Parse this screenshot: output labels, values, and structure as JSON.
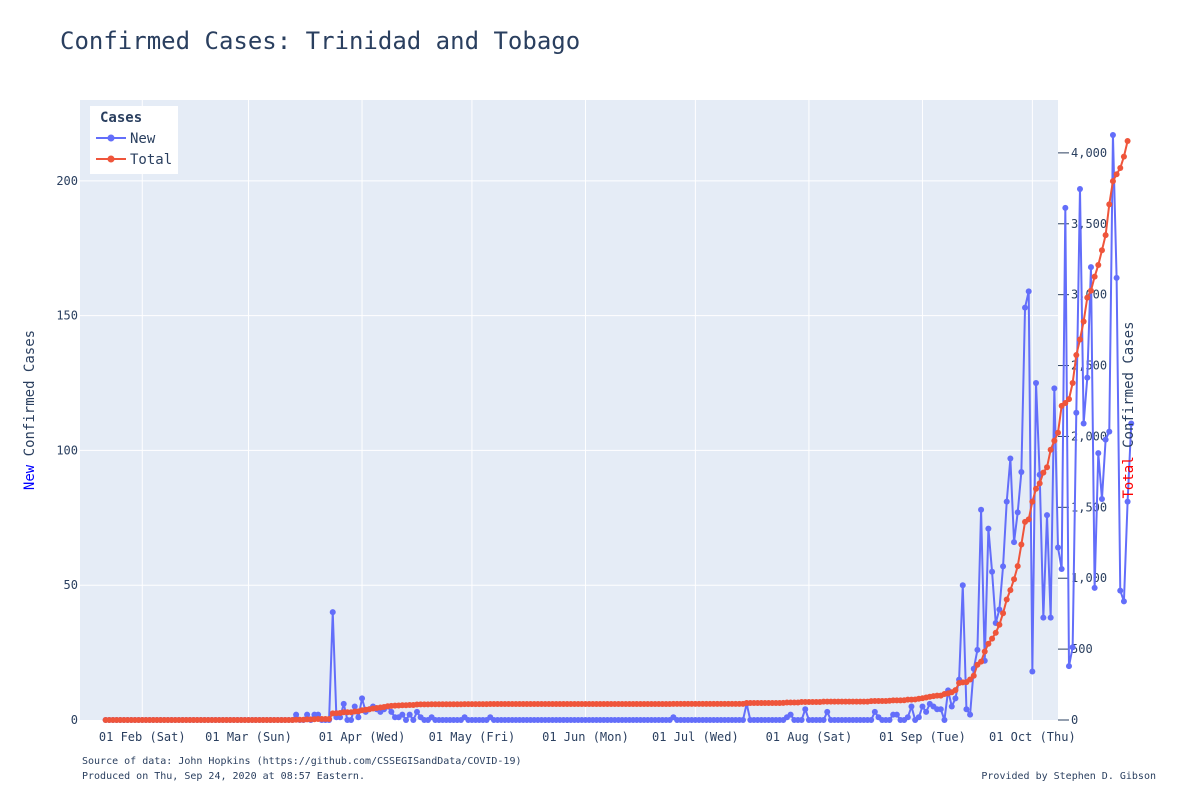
{
  "title": "Confirmed Cases: Trinidad and Tobago",
  "footer": {
    "source": "Source of data: John Hopkins (https://github.com/CSSEGISandData/COVID-19)",
    "produced": "Produced on Thu, Sep 24, 2020 at 08:57 Eastern.",
    "credit": "Provided by Stephen D. Gibson"
  },
  "colors": {
    "new": "#636efa",
    "total": "#ef553b",
    "plot_bg": "#e5ecf6",
    "grid": "#ffffff",
    "text": "#2a3f5f"
  },
  "chart_data": {
    "type": "line",
    "x_start_date": "2020-01-22",
    "x_end_date": "2020-09-23",
    "x_range": [
      "2020-01-15",
      "2020-10-08"
    ],
    "x_ticks": [
      {
        "date": "2020-02-01",
        "label": "01 Feb (Sat)"
      },
      {
        "date": "2020-03-01",
        "label": "01 Mar (Sun)"
      },
      {
        "date": "2020-04-01",
        "label": "01 Apr (Wed)"
      },
      {
        "date": "2020-05-01",
        "label": "01 May (Fri)"
      },
      {
        "date": "2020-06-01",
        "label": "01 Jun (Mon)"
      },
      {
        "date": "2020-07-01",
        "label": "01 Jul (Wed)"
      },
      {
        "date": "2020-08-01",
        "label": "01 Aug (Sat)"
      },
      {
        "date": "2020-09-01",
        "label": "01 Sep (Tue)"
      },
      {
        "date": "2020-10-01",
        "label": "01 Oct (Thu)"
      }
    ],
    "y_left": {
      "label_highlight": "New",
      "label_rest": " Confirmed Cases",
      "range": [
        0,
        230
      ],
      "ticks": [
        0,
        50,
        100,
        150,
        200
      ],
      "tick_labels": [
        "0",
        "50",
        "100",
        "150",
        "200"
      ]
    },
    "y_right": {
      "label_highlight": "Total",
      "label_rest": " Confirmed Cases",
      "range": [
        0,
        4373
      ],
      "ticks": [
        0,
        500,
        1000,
        1500,
        2000,
        2500,
        3000,
        3500,
        4000
      ],
      "tick_labels": [
        "0",
        "500",
        "1,000",
        "1,500",
        "2,000",
        "2,500",
        "3,000",
        "3,500",
        "4,000"
      ]
    },
    "legend": {
      "title": "Cases",
      "position": "top-left"
    },
    "series": [
      {
        "name": "New",
        "axis": "left",
        "values": [
          0,
          0,
          0,
          0,
          0,
          0,
          0,
          0,
          0,
          0,
          0,
          0,
          0,
          0,
          0,
          0,
          0,
          0,
          0,
          0,
          0,
          0,
          0,
          0,
          0,
          0,
          0,
          0,
          0,
          0,
          0,
          0,
          0,
          0,
          0,
          0,
          0,
          0,
          0,
          0,
          0,
          0,
          0,
          0,
          0,
          0,
          0,
          0,
          0,
          0,
          0,
          0,
          2,
          0,
          0,
          2,
          0,
          2,
          2,
          0,
          0,
          0,
          40,
          1,
          1,
          6,
          0,
          0,
          5,
          1,
          8,
          3,
          4,
          5,
          4,
          3,
          4,
          5,
          3,
          1,
          1,
          2,
          0,
          2,
          0,
          3,
          1,
          0,
          0,
          1,
          0,
          0,
          0,
          0,
          0,
          0,
          0,
          0,
          1,
          0,
          0,
          0,
          0,
          0,
          0,
          1,
          0,
          0,
          0,
          0,
          0,
          0,
          0,
          0,
          0,
          0,
          0,
          0,
          0,
          0,
          0,
          0,
          0,
          0,
          0,
          0,
          0,
          0,
          0,
          0,
          0,
          0,
          0,
          0,
          0,
          0,
          0,
          0,
          0,
          0,
          0,
          0,
          0,
          0,
          0,
          0,
          0,
          0,
          0,
          0,
          0,
          0,
          0,
          0,
          0,
          1,
          0,
          0,
          0,
          0,
          0,
          0,
          0,
          0,
          0,
          0,
          0,
          0,
          0,
          0,
          0,
          0,
          0,
          0,
          0,
          6,
          0,
          0,
          0,
          0,
          0,
          0,
          0,
          0,
          0,
          0,
          1,
          2,
          0,
          0,
          0,
          4,
          0,
          0,
          0,
          0,
          0,
          3,
          0,
          0,
          0,
          0,
          0,
          0,
          0,
          0,
          0,
          0,
          0,
          0,
          3,
          1,
          0,
          0,
          0,
          2,
          2,
          0,
          0,
          1,
          5,
          0,
          1,
          5,
          3,
          6,
          5,
          4,
          4,
          0,
          11,
          5,
          8,
          15,
          50,
          4,
          2,
          19,
          26,
          78,
          22,
          71,
          55,
          36,
          41,
          57,
          81,
          97,
          66,
          77,
          92,
          153,
          159,
          18,
          125,
          91,
          38,
          76,
          38,
          123,
          64,
          56,
          190,
          20,
          27,
          114,
          197,
          110,
          127,
          168,
          49,
          99,
          82,
          104,
          107,
          217,
          164,
          48,
          44,
          81,
          110
        ]
      },
      {
        "name": "Total",
        "axis": "right",
        "values": [
          0,
          0,
          0,
          0,
          0,
          0,
          0,
          0,
          0,
          0,
          0,
          0,
          0,
          0,
          0,
          0,
          0,
          0,
          0,
          0,
          0,
          0,
          0,
          0,
          0,
          0,
          0,
          0,
          0,
          0,
          0,
          0,
          0,
          0,
          0,
          0,
          0,
          0,
          0,
          0,
          0,
          0,
          0,
          0,
          0,
          0,
          0,
          0,
          0,
          0,
          0,
          0,
          2,
          2,
          2,
          4,
          4,
          5,
          7,
          7,
          7,
          7,
          47,
          48,
          49,
          55,
          55,
          55,
          60,
          61,
          69,
          72,
          76,
          81,
          85,
          88,
          92,
          97,
          100,
          101,
          102,
          104,
          104,
          106,
          106,
          109,
          110,
          110,
          110,
          111,
          111,
          111,
          111,
          111,
          111,
          111,
          111,
          111,
          112,
          112,
          112,
          112,
          112,
          112,
          112,
          113,
          113,
          113,
          113,
          113,
          113,
          113,
          113,
          113,
          113,
          113,
          113,
          113,
          113,
          113,
          113,
          113,
          113,
          113,
          113,
          113,
          113,
          113,
          113,
          113,
          113,
          113,
          113,
          113,
          113,
          113,
          113,
          113,
          113,
          113,
          113,
          113,
          113,
          113,
          113,
          113,
          113,
          113,
          113,
          113,
          113,
          113,
          113,
          113,
          113,
          114,
          114,
          114,
          114,
          114,
          114,
          114,
          114,
          114,
          114,
          114,
          114,
          114,
          114,
          114,
          114,
          114,
          114,
          114,
          114,
          120,
          120,
          120,
          120,
          120,
          120,
          120,
          120,
          120,
          120,
          121,
          123,
          123,
          123,
          123,
          127,
          127,
          127,
          127,
          127,
          127,
          130,
          130,
          130,
          130,
          130,
          130,
          130,
          130,
          130,
          130,
          130,
          130,
          130,
          133,
          134,
          134,
          134,
          134,
          136,
          138,
          138,
          138,
          139,
          144,
          144,
          145,
          150,
          153,
          159,
          164,
          168,
          172,
          172,
          183,
          188,
          196,
          211,
          261,
          265,
          267,
          286,
          312,
          390,
          412,
          483,
          538,
          574,
          615,
          672,
          753,
          850,
          916,
          993,
          1085,
          1238,
          1397,
          1415,
          1540,
          1631,
          1669,
          1745,
          1783,
          1906,
          1970,
          2026,
          2216,
          2236,
          2263,
          2377,
          2574,
          2684,
          2811,
          2979,
          3028,
          3127,
          3209,
          3313,
          3420,
          3637,
          3801,
          3849,
          3893,
          3974,
          4084
        ]
      }
    ]
  }
}
